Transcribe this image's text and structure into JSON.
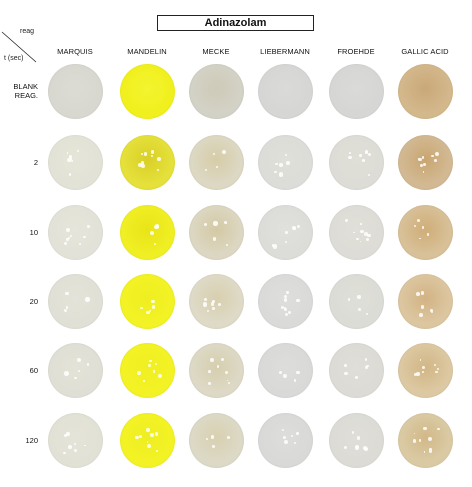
{
  "title": "Adinazolam",
  "corner": {
    "reagent_label": "reag",
    "time_label": "t (sec)"
  },
  "columns": [
    "MARQUIS",
    "MANDELIN",
    "MECKE",
    "LIEBERMANN",
    "FROEHDE",
    "GALLIC ACID"
  ],
  "rows": [
    {
      "label_lines": [
        "BLANK",
        "REAG."
      ],
      "colors": [
        "#d8d7d0",
        "#f0f01e",
        "#d3d2c6",
        "#d6d6d4",
        "#d6d6d4",
        "#d3b88c"
      ],
      "center": [
        "#dcdbd4",
        "#f4f430",
        "#cfcab8",
        "#dadad8",
        "#dadad8",
        "#c9a878"
      ]
    },
    {
      "label_lines": [
        "2"
      ],
      "colors": [
        "#e2e2d6",
        "#e5e03a",
        "#dcd8c3",
        "#dcdcd8",
        "#dddcd6",
        "#d2b993"
      ],
      "center": [
        "#e6e5d8",
        "#d8d028",
        "#d6cca8",
        "#e0e0da",
        "#e0dfd6",
        "#c9a670"
      ]
    },
    {
      "label_lines": [
        "10"
      ],
      "colors": [
        "#e2e2d8",
        "#f0ef24",
        "#dcd7c2",
        "#dcdcd8",
        "#dddcd6",
        "#d8c098"
      ],
      "center": [
        "#e6e5da",
        "#e8e418",
        "#d4c9a4",
        "#e0e0dc",
        "#e0dfd8",
        "#cfae78"
      ]
    },
    {
      "label_lines": [
        "20"
      ],
      "colors": [
        "#e0e0d6",
        "#f2f224",
        "#dedac7",
        "#dadad8",
        "#dcdcd6",
        "#dcc6a0"
      ],
      "center": [
        "#e4e3d8",
        "#eeee20",
        "#d8cfae",
        "#dededc",
        "#dfdfd8",
        "#d2b384"
      ]
    },
    {
      "label_lines": [
        "60"
      ],
      "colors": [
        "#e0dfd5",
        "#f3f225",
        "#ddd9c6",
        "#d9d9d7",
        "#dcdbd5",
        "#dcc8a2"
      ],
      "center": [
        "#e4e3d8",
        "#f0ef22",
        "#d6ceae",
        "#dddddb",
        "#dfded8",
        "#d2b686"
      ]
    },
    {
      "label_lines": [
        "120"
      ],
      "colors": [
        "#e2e1d6",
        "#f3f225",
        "#dcd9c6",
        "#d9d9d7",
        "#dcdbd5",
        "#dacaa4"
      ],
      "center": [
        "#e5e4d8",
        "#eeee22",
        "#d8d0b0",
        "#dddddb",
        "#dfded8",
        "#d2b888"
      ]
    }
  ]
}
